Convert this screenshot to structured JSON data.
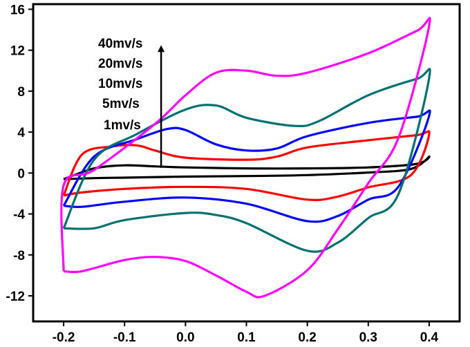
{
  "chart_data": {
    "type": "line",
    "title": "",
    "xlabel": "",
    "ylabel": "",
    "xlim": [
      -0.25,
      0.45
    ],
    "ylim": [
      -14.5,
      16.5
    ],
    "xticks": [
      -0.2,
      -0.1,
      0.0,
      0.1,
      0.2,
      0.3,
      0.4
    ],
    "xtick_labels": [
      "-0.2",
      "-0.1",
      "0.0",
      "0.1",
      "0.2",
      "0.3",
      "0.4"
    ],
    "yticks": [
      -12,
      -8,
      -4,
      0,
      4,
      8,
      12,
      16
    ],
    "ytick_labels": [
      "-12",
      "-8",
      "-4",
      "0",
      "4",
      "8",
      "12",
      "16"
    ],
    "grid": false,
    "legend_position": "top-left",
    "annotation": {
      "labels": [
        "40mv/s",
        "20mv/s",
        "10mv/s",
        "5mv/s",
        "1mv/s"
      ],
      "arrow": {
        "x": -0.04,
        "y_from": 0.5,
        "y_to": 12.5,
        "direction": "up"
      }
    },
    "series": [
      {
        "label": "1mv/s",
        "color": "#000000",
        "points": [
          [
            -0.2,
            -0.6
          ],
          [
            -0.15,
            -0.5
          ],
          [
            -0.1,
            -0.45
          ],
          [
            0.0,
            -0.35
          ],
          [
            0.1,
            -0.3
          ],
          [
            0.2,
            -0.2
          ],
          [
            0.3,
            0.05
          ],
          [
            0.37,
            0.4
          ],
          [
            0.4,
            1.6
          ],
          [
            0.38,
            0.9
          ],
          [
            0.3,
            0.55
          ],
          [
            0.2,
            0.45
          ],
          [
            0.1,
            0.45
          ],
          [
            0.0,
            0.55
          ],
          [
            -0.05,
            0.65
          ],
          [
            -0.1,
            0.75
          ],
          [
            -0.15,
            0.45
          ],
          [
            -0.2,
            -0.6
          ]
        ]
      },
      {
        "label": "5mv/s",
        "color": "#ff0000",
        "points": [
          [
            -0.2,
            -2.2
          ],
          [
            -0.17,
            -1.9
          ],
          [
            -0.1,
            -1.55
          ],
          [
            0.0,
            -1.35
          ],
          [
            0.1,
            -1.55
          ],
          [
            0.2,
            -2.6
          ],
          [
            0.25,
            -2.3
          ],
          [
            0.3,
            -1.4
          ],
          [
            0.37,
            -0.2
          ],
          [
            0.4,
            3.8
          ],
          [
            0.38,
            3.7
          ],
          [
            0.3,
            3.2
          ],
          [
            0.2,
            2.5
          ],
          [
            0.15,
            1.6
          ],
          [
            0.1,
            1.3
          ],
          [
            0.0,
            1.5
          ],
          [
            -0.05,
            2.2
          ],
          [
            -0.08,
            2.7
          ],
          [
            -0.12,
            2.6
          ],
          [
            -0.17,
            1.8
          ],
          [
            -0.2,
            -2.2
          ]
        ]
      },
      {
        "label": "10mv/s",
        "color": "#0000ff",
        "points": [
          [
            -0.2,
            -3.2
          ],
          [
            -0.17,
            -3.3
          ],
          [
            -0.1,
            -2.8
          ],
          [
            0.0,
            -2.4
          ],
          [
            0.1,
            -3.0
          ],
          [
            0.2,
            -4.7
          ],
          [
            0.25,
            -4.2
          ],
          [
            0.3,
            -2.6
          ],
          [
            0.35,
            -1.3
          ],
          [
            0.4,
            5.6
          ],
          [
            0.38,
            5.5
          ],
          [
            0.3,
            4.9
          ],
          [
            0.2,
            3.6
          ],
          [
            0.15,
            2.4
          ],
          [
            0.1,
            2.2
          ],
          [
            0.05,
            2.8
          ],
          [
            0.0,
            4.2
          ],
          [
            -0.03,
            4.3
          ],
          [
            -0.08,
            3.3
          ],
          [
            -0.15,
            1.6
          ],
          [
            -0.2,
            -3.2
          ]
        ]
      },
      {
        "label": "20mv/s",
        "color": "#007070",
        "points": [
          [
            -0.2,
            -5.4
          ],
          [
            -0.15,
            -5.4
          ],
          [
            -0.1,
            -4.6
          ],
          [
            0.0,
            -3.9
          ],
          [
            0.05,
            -4.1
          ],
          [
            0.1,
            -4.9
          ],
          [
            0.2,
            -7.6
          ],
          [
            0.25,
            -6.8
          ],
          [
            0.3,
            -4.4
          ],
          [
            0.35,
            -2.0
          ],
          [
            0.4,
            9.3
          ],
          [
            0.38,
            9.2
          ],
          [
            0.3,
            7.6
          ],
          [
            0.22,
            5.1
          ],
          [
            0.18,
            4.6
          ],
          [
            0.1,
            5.4
          ],
          [
            0.05,
            6.6
          ],
          [
            0.0,
            6.2
          ],
          [
            -0.08,
            3.8
          ],
          [
            -0.15,
            1.3
          ],
          [
            -0.2,
            -5.4
          ]
        ]
      },
      {
        "label": "40mv/s",
        "color": "#ff00ff",
        "points": [
          [
            -0.2,
            -9.6
          ],
          [
            -0.17,
            -9.6
          ],
          [
            -0.1,
            -8.5
          ],
          [
            -0.05,
            -8.2
          ],
          [
            0.0,
            -8.6
          ],
          [
            0.05,
            -10.0
          ],
          [
            0.1,
            -11.6
          ],
          [
            0.13,
            -12.0
          ],
          [
            0.2,
            -9.5
          ],
          [
            0.25,
            -5.5
          ],
          [
            0.3,
            -1.0
          ],
          [
            0.35,
            3.5
          ],
          [
            0.4,
            14.4
          ],
          [
            0.38,
            13.9
          ],
          [
            0.3,
            11.7
          ],
          [
            0.2,
            9.8
          ],
          [
            0.15,
            9.5
          ],
          [
            0.1,
            10.0
          ],
          [
            0.05,
            9.8
          ],
          [
            0.0,
            7.6
          ],
          [
            -0.05,
            4.8
          ],
          [
            -0.15,
            0.3
          ],
          [
            -0.2,
            -1.2
          ],
          [
            -0.2,
            -9.6
          ]
        ]
      }
    ]
  }
}
